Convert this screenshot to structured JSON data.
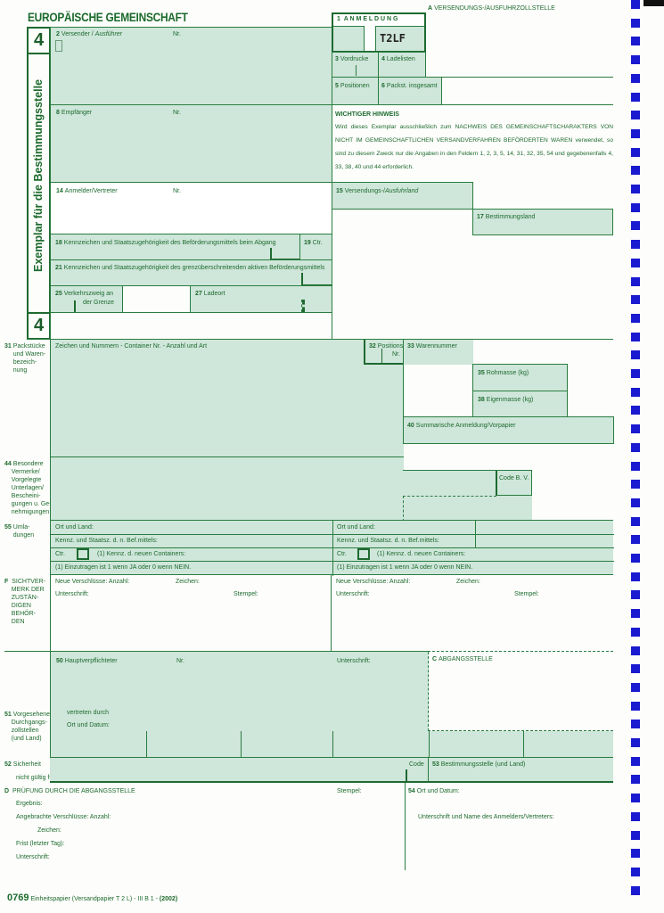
{
  "header": {
    "title": "EUROPÄISCHE GEMEINSCHAFT",
    "copy_number": "4",
    "copy_vertical": "Exemplar für die Bestimmungsstelle"
  },
  "box_a": {
    "code": "A",
    "label": "VERSENDUNGS-/AUSFUHRZOLLSTELLE"
  },
  "box1": {
    "n": "1",
    "label": "A N M E L D U N G",
    "value": "T2LF"
  },
  "box2": {
    "n": "2",
    "label": "Versender / ",
    "label_italic": "Ausführer",
    "nr": "Nr."
  },
  "box3": {
    "n": "3",
    "label": "Vordrucke"
  },
  "box4": {
    "n": "4",
    "label": "Ladelisten"
  },
  "box5": {
    "n": "5",
    "label": "Positionen"
  },
  "box6": {
    "n": "6",
    "label": "Packst. insgesamt"
  },
  "box8": {
    "n": "8",
    "label": "Empfänger",
    "nr": "Nr."
  },
  "hinweis": {
    "title": "WICHTIGER HINWEIS",
    "text": "Wird dieses Exemplar ausschließlich zum NACHWEIS DES GEMEINSCHAFTSCHARAKTERS VON NICHT IM GEMEINSCHAFTLICHEN VERSANDVERFAHREN BEFÖRDERTEN WAREN verwendet, so sind zu diesem Zweck nur die Angaben in den Feldern 1, 2, 3, 5, 14, 31, 32, 35, 54 und gegebenenfalls 4, 33, 38, 40 und 44 erforderlich."
  },
  "box14": {
    "n": "14",
    "label": "Anmelder/Vertreter",
    "nr": "Nr."
  },
  "box15": {
    "n": "15",
    "label": "Versendungs-/",
    "label_italic": "Ausfuhrland"
  },
  "box17": {
    "n": "17",
    "label": "Bestimmungsland"
  },
  "box18": {
    "n": "18",
    "label": "Kennzeichen und Staatszugehörigkeit des Beförderungsmittels beim Abgang"
  },
  "box19": {
    "n": "19",
    "label": "Ctr."
  },
  "box21": {
    "n": "21",
    "label": "Kennzeichen und Staatszugehörigkeit des grenzüberschreitenden aktiven Beförderungsmittels"
  },
  "box25": {
    "n": "25",
    "label1": "Verkehrszweig an",
    "label2": "der Grenze"
  },
  "box27": {
    "n": "27",
    "label": "Ladeort"
  },
  "box31": {
    "n": "31",
    "side": [
      "Packstücke",
      "und Waren-",
      "bezeich-",
      "nung"
    ],
    "label": "Zeichen und Nummern - Container Nr. - Anzahl und Art"
  },
  "box32": {
    "n": "32",
    "label1": "Positions-",
    "label2": "Nr."
  },
  "box33": {
    "n": "33",
    "label": "Warennummer"
  },
  "box35": {
    "n": "35",
    "label": "Rohmasse (kg)"
  },
  "box38": {
    "n": "38",
    "label": "Eigenmasse (kg)"
  },
  "box40": {
    "n": "40",
    "label": "Summarische Anmeldung/Vorpapier"
  },
  "box44": {
    "n": "44",
    "side": [
      "Besondere",
      "Vermerke/",
      "Vorgelegte",
      "Unterlagen/",
      "Bescheini-",
      "gungen u. Ge-",
      "nehmigungen"
    ],
    "code_bv": "Code B. V."
  },
  "box55": {
    "n": "55",
    "side": [
      "Umla-",
      "dungen"
    ],
    "ort": "Ort und Land:",
    "kennz": "Kennz. und Staatsz. d. n. Bef.mittels:",
    "ctr": "Ctr.",
    "container": "(1)  Kennz. d. neuen Containers:",
    "note": "(1) Einzutragen ist 1 wenn JA oder 0 wenn NEIN."
  },
  "boxF": {
    "code": "F",
    "side": [
      "SICHTVER-",
      "MERK DER",
      "ZUSTÄN-",
      "DIGEN",
      "BEHÖR-",
      "DEN"
    ],
    "verschluesse": "Neue Verschlüsse: Anzahl:",
    "zeichen": "Zeichen:",
    "unterschrift": "Unterschrift:",
    "stempel": "Stempel:"
  },
  "box50": {
    "n": "50",
    "label": "Hauptverpflichteter",
    "nr": "Nr.",
    "unterschrift": "Unterschrift:",
    "vertreten": "vertreten durch",
    "ort_datum": "Ort und Datum:"
  },
  "boxC": {
    "code": "C",
    "label": "ABGANGSSTELLE"
  },
  "box51": {
    "n": "51",
    "side": [
      "Vorgesehene",
      "Durchgangs-",
      "zollstellen",
      "(und Land)"
    ]
  },
  "box52": {
    "n": "52",
    "label": "Sicherheit",
    "sub": "nicht gültig für",
    "code": "Code"
  },
  "box53": {
    "n": "53",
    "label": "Bestimmungsstelle (und Land)"
  },
  "boxD": {
    "code": "D",
    "label": "PRÜFUNG DURCH DIE ABGANGSSTELLE",
    "ergebnis": "Ergebnis:",
    "verschluesse": "Angebrachte Verschlüsse:  Anzahl:",
    "zeichen": "Zeichen:",
    "frist": "Frist (letzter Tag):",
    "unterschrift": "Unterschrift:",
    "stempel": "Stempel:"
  },
  "box54": {
    "n": "54",
    "label": "Ort und Datum:",
    "unterschrift": "Unterschrift und Name des Anmelders/Vertreters:"
  },
  "footer": {
    "number": "0769",
    "text": "Einheitspapier (Versandpapier T 2 L) - III B 1 - ",
    "year": "(2002)"
  },
  "colors": {
    "form_green": "#2a7d40",
    "fill_green": "#cfe6da",
    "punch_blue": "#1a1ad0"
  }
}
